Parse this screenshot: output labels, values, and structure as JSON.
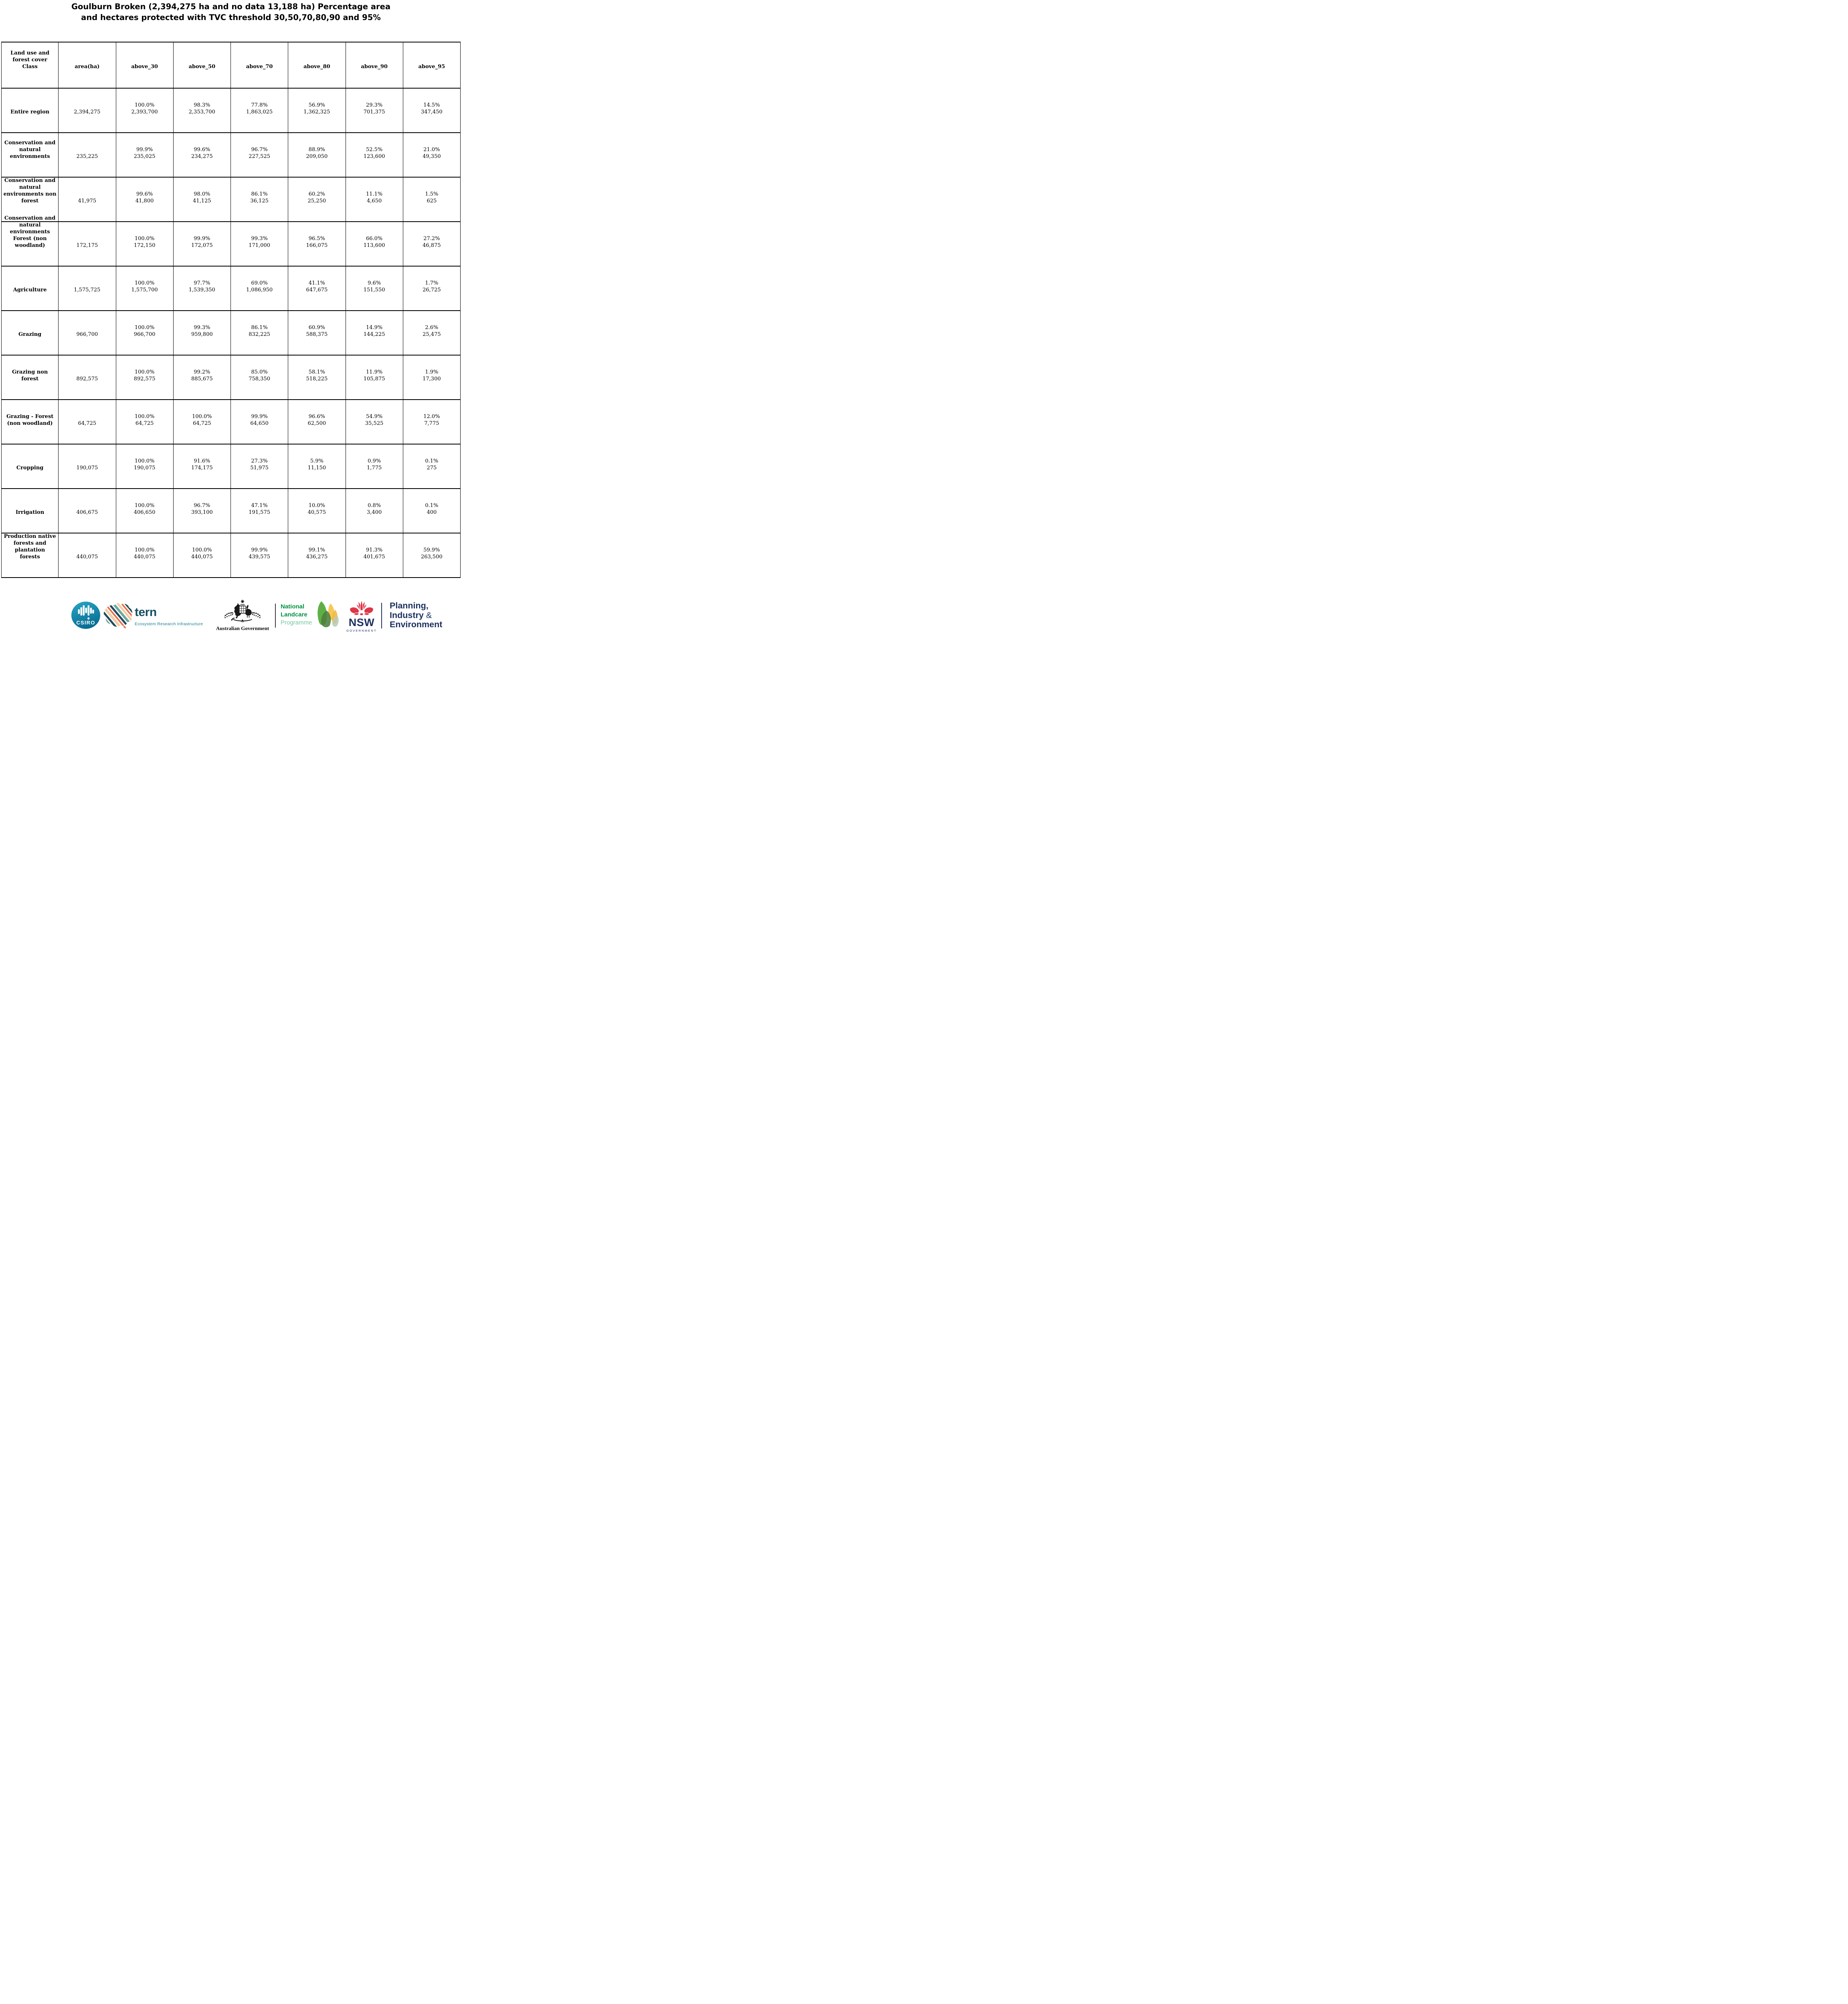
{
  "title_lines": [
    "Goulburn Broken (2,394,275 ha and no data 13,188 ha) Percentage area",
    "and hectares protected with TVC threshold 30,50,70,80,90 and 95%"
  ],
  "table": {
    "columns": [
      "Land use and\nforest cover\nClass",
      "area(ha)",
      "above_30",
      "above_50",
      "above_70",
      "above_80",
      "above_90",
      "above_95"
    ],
    "rows": [
      {
        "label": "Entire region",
        "area": "2,394,275",
        "cells": [
          [
            "100.0%",
            "2,393,700"
          ],
          [
            "98.3%",
            "2,353,700"
          ],
          [
            "77.8%",
            "1,863,025"
          ],
          [
            "56.9%",
            "1,362,325"
          ],
          [
            "29.3%",
            "701,375"
          ],
          [
            "14.5%",
            "347,450"
          ]
        ]
      },
      {
        "label": "Conservation and\nnatural\nenvironments",
        "area": "235,225",
        "cells": [
          [
            "99.9%",
            "235,025"
          ],
          [
            "99.6%",
            "234,275"
          ],
          [
            "96.7%",
            "227,525"
          ],
          [
            "88.9%",
            "209,050"
          ],
          [
            "52.5%",
            "123,600"
          ],
          [
            "21.0%",
            "49,350"
          ]
        ]
      },
      {
        "label": "Conservation and\nnatural\nenvironments non\nforest",
        "area": "41,975",
        "cells": [
          [
            "99.6%",
            "41,800"
          ],
          [
            "98.0%",
            "41,125"
          ],
          [
            "86.1%",
            "36,125"
          ],
          [
            "60.2%",
            "25,250"
          ],
          [
            "11.1%",
            "4,650"
          ],
          [
            "1.5%",
            "625"
          ]
        ]
      },
      {
        "label": "Conservation and\nnatural\nenvironments\nForest (non\nwoodland)",
        "area": "172,175",
        "cells": [
          [
            "100.0%",
            "172,150"
          ],
          [
            "99.9%",
            "172,075"
          ],
          [
            "99.3%",
            "171,000"
          ],
          [
            "96.5%",
            "166,075"
          ],
          [
            "66.0%",
            "113,600"
          ],
          [
            "27.2%",
            "46,875"
          ]
        ]
      },
      {
        "label": "Agriculture",
        "area": "1,575,725",
        "cells": [
          [
            "100.0%",
            "1,575,700"
          ],
          [
            "97.7%",
            "1,539,350"
          ],
          [
            "69.0%",
            "1,086,950"
          ],
          [
            "41.1%",
            "647,675"
          ],
          [
            "9.6%",
            "151,550"
          ],
          [
            "1.7%",
            "26,725"
          ]
        ]
      },
      {
        "label": "Grazing",
        "area": "966,700",
        "cells": [
          [
            "100.0%",
            "966,700"
          ],
          [
            "99.3%",
            "959,800"
          ],
          [
            "86.1%",
            "832,225"
          ],
          [
            "60.9%",
            "588,375"
          ],
          [
            "14.9%",
            "144,225"
          ],
          [
            "2.6%",
            "25,475"
          ]
        ]
      },
      {
        "label": "Grazing non\nforest",
        "area": "892,575",
        "cells": [
          [
            "100.0%",
            "892,575"
          ],
          [
            "99.2%",
            "885,675"
          ],
          [
            "85.0%",
            "758,350"
          ],
          [
            "58.1%",
            "518,225"
          ],
          [
            "11.9%",
            "105,875"
          ],
          [
            "1.9%",
            "17,300"
          ]
        ]
      },
      {
        "label": "Grazing - Forest\n(non woodland)",
        "area": "64,725",
        "cells": [
          [
            "100.0%",
            "64,725"
          ],
          [
            "100.0%",
            "64,725"
          ],
          [
            "99.9%",
            "64,650"
          ],
          [
            "96.6%",
            "62,500"
          ],
          [
            "54.9%",
            "35,525"
          ],
          [
            "12.0%",
            "7,775"
          ]
        ]
      },
      {
        "label": "Cropping",
        "area": "190,075",
        "cells": [
          [
            "100.0%",
            "190,075"
          ],
          [
            "91.6%",
            "174,175"
          ],
          [
            "27.3%",
            "51,975"
          ],
          [
            "5.9%",
            "11,150"
          ],
          [
            "0.9%",
            "1,775"
          ],
          [
            "0.1%",
            "275"
          ]
        ]
      },
      {
        "label": "Irrigation",
        "area": "406,675",
        "cells": [
          [
            "100.0%",
            "406,650"
          ],
          [
            "96.7%",
            "393,100"
          ],
          [
            "47.1%",
            "191,575"
          ],
          [
            "10.0%",
            "40,575"
          ],
          [
            "0.8%",
            "3,400"
          ],
          [
            "0.1%",
            "400"
          ]
        ]
      },
      {
        "label": "Production native\nforests and\nplantation\nforests",
        "area": "440,075",
        "cells": [
          [
            "100.0%",
            "440,075"
          ],
          [
            "100.0%",
            "440,075"
          ],
          [
            "99.9%",
            "439,575"
          ],
          [
            "99.1%",
            "436,275"
          ],
          [
            "91.3%",
            "401,675"
          ],
          [
            "59.9%",
            "263,500"
          ]
        ]
      }
    ]
  },
  "footer": {
    "csiro_label": "CSIRO",
    "tern_word": "tern",
    "tern_subtitle": "Ecosystem Research Infrastructure",
    "aus_gov_label": "Australian Government",
    "landcare_line1": "National",
    "landcare_line2": "Landcare",
    "landcare_line3": "Programme",
    "nsw_label": "NSW",
    "nsw_caption": "GOVERNMENT",
    "dpie_line1": "Planning,",
    "dpie_line2_word": "Industry",
    "dpie_line2_amp": "&",
    "dpie_line3": "Environment"
  },
  "colors": {
    "table_border": "#000000",
    "csiro_teal_top": "#28a7c5",
    "csiro_teal_bottom": "#0a6e93",
    "tern_dark": "#134f63",
    "tern_teal": "#1e7f93",
    "tern_coral": "#e9714b",
    "tern_peach": "#f4cba4",
    "tern_sage": "#6fa8a0",
    "landcare_green": "#00923f",
    "landcare_light_green": "#74c69a",
    "leaf_green": "#57ab3c",
    "leaf_dark_green": "#4d7f3e",
    "leaf_yellow": "#f5c54e",
    "leaf_sage": "#b7cbb6",
    "nsw_red": "#de3548",
    "nsw_navy": "#1d3160",
    "ausgov_black": "#1a1a1a"
  }
}
